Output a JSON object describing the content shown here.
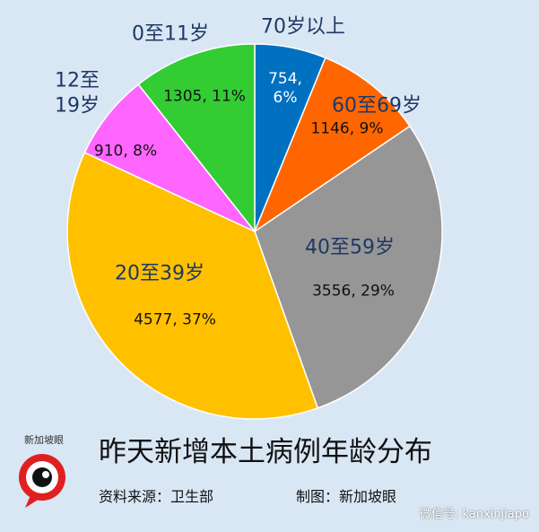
{
  "chart_data": {
    "type": "pie",
    "title": "昨天新增本土病例年龄分布",
    "source": "资料来源：卫生部",
    "credit": "制图：新加坡眼",
    "logo_text": "新加坡眼",
    "watermark": "微信号: kanxinjiapo",
    "categories": [
      "70岁以上",
      "60至69岁",
      "40至59岁",
      "20至39岁",
      "12至19岁",
      "0至11岁"
    ],
    "values": [
      754,
      1146,
      3556,
      4577,
      910,
      1305
    ],
    "value_labels": [
      "754, 6%",
      "1146, 9%",
      "3556, 29%",
      "4577, 37%",
      "910, 8%",
      "1305, 11%"
    ],
    "colors": [
      "#0070c0",
      "#ff6600",
      "#969696",
      "#ffc000",
      "#ff66ff",
      "#33cc33"
    ]
  }
}
